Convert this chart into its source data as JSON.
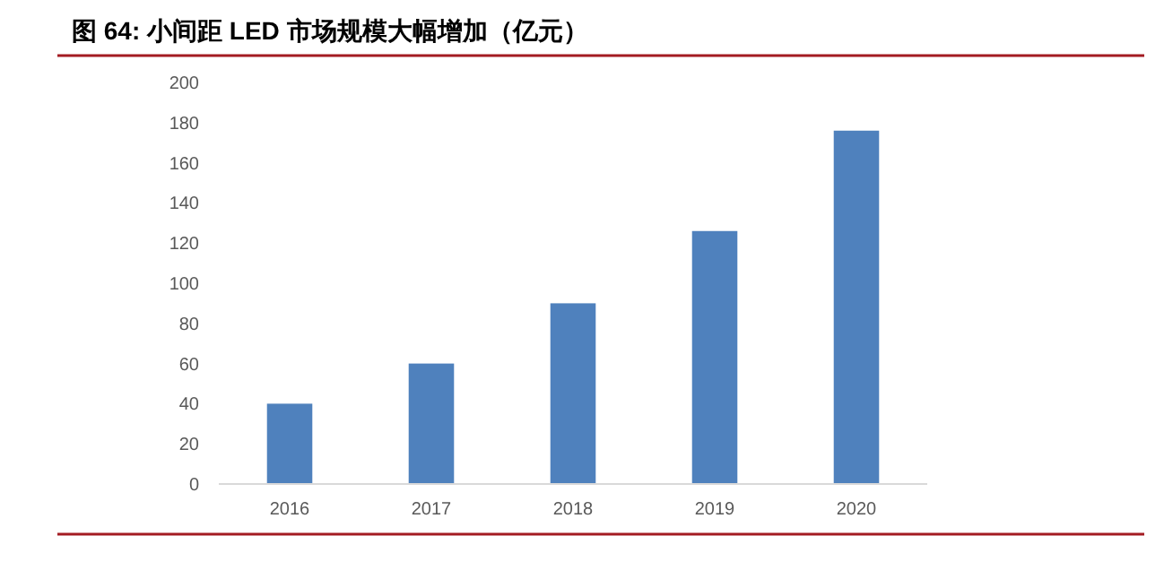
{
  "chart_data": {
    "type": "bar",
    "title": "图 64:  小间距 LED 市场规模大幅增加（亿元）",
    "categories": [
      "2016",
      "2017",
      "2018",
      "2019",
      "2020"
    ],
    "values": [
      40,
      60,
      90,
      126,
      176
    ],
    "color": "#4f81bd",
    "ylim": [
      0,
      200
    ],
    "yticks": [
      0,
      20,
      40,
      60,
      80,
      100,
      120,
      140,
      160,
      180,
      200
    ],
    "grid": false
  }
}
